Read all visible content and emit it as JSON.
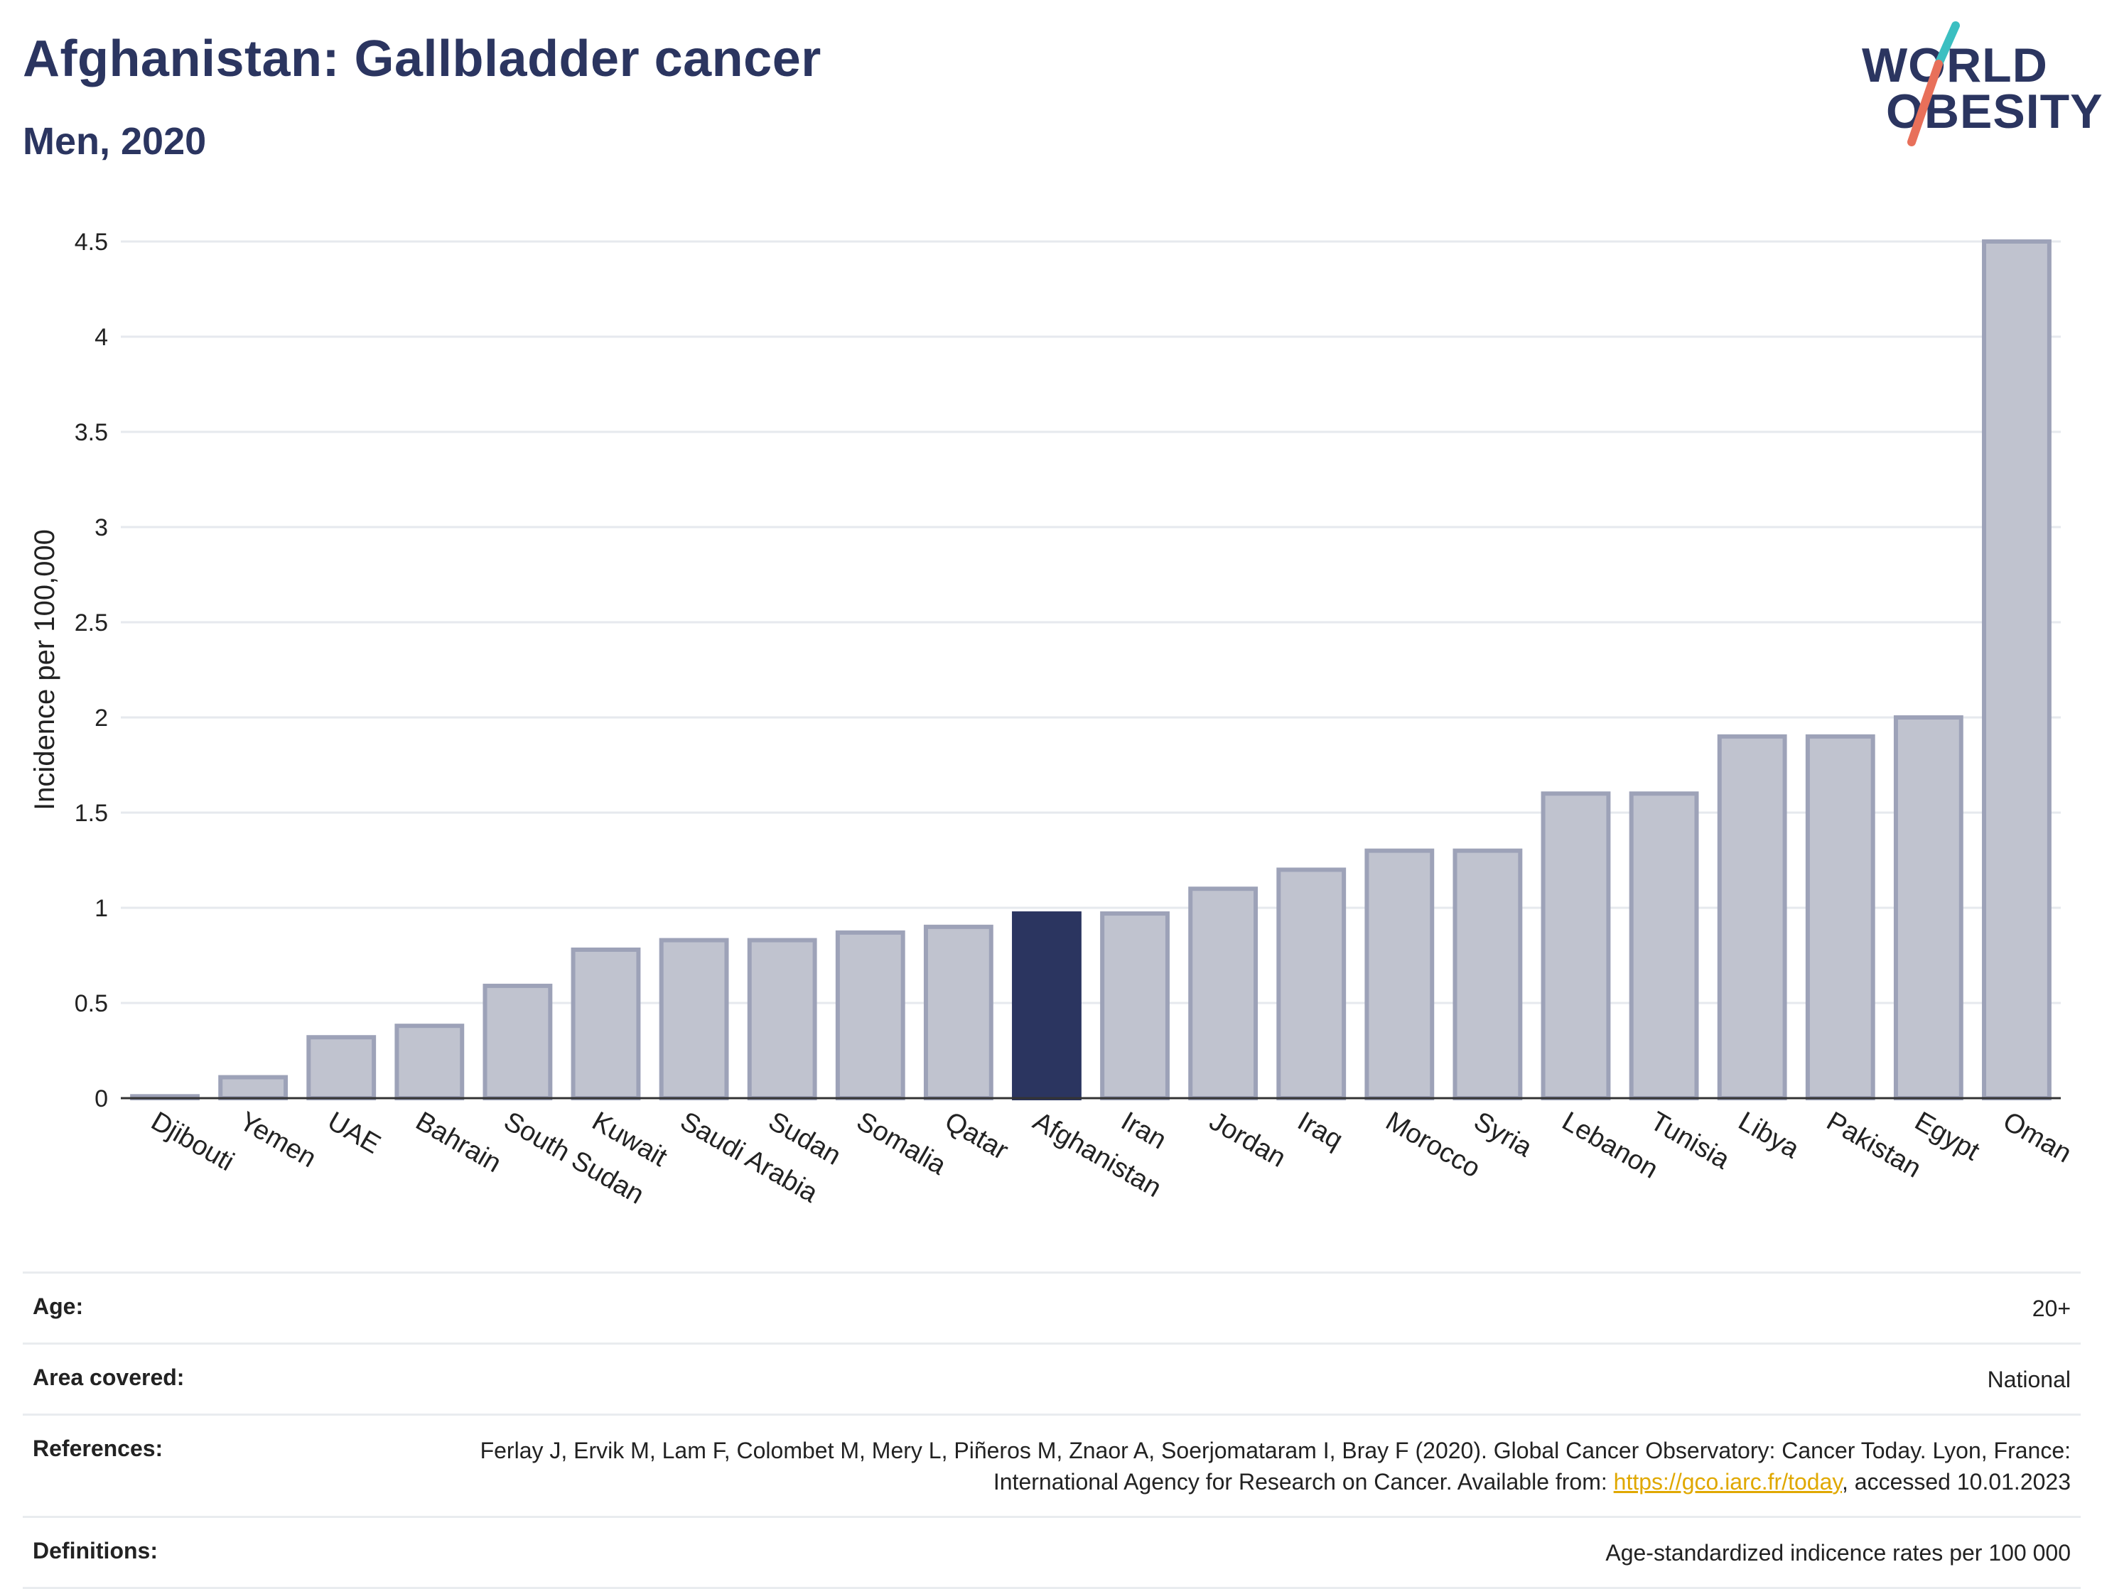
{
  "title": "Afghanistan: Gallbladder cancer",
  "subtitle": "Men, 2020",
  "logo": {
    "line1": "WORLD",
    "line2": "OBESITY",
    "accent_colors": [
      "#3bbfc1",
      "#e8705a"
    ]
  },
  "colors": {
    "highlight": "#2b3560",
    "bar": "#c0c3cf",
    "bar_border": "#9da2b8",
    "grid": "#e6e9ee",
    "axis": "#333333"
  },
  "chart_data": {
    "type": "bar",
    "ylabel": "Incidence per 100,000",
    "ylim": [
      0,
      4.5
    ],
    "yticks": [
      0,
      0.5,
      1,
      1.5,
      2,
      2.5,
      3,
      3.5,
      4,
      4.5
    ],
    "ytick_labels": [
      "0",
      "0.5",
      "1",
      "1.5",
      "2",
      "2.5",
      "3",
      "3.5",
      "4",
      "4.5"
    ],
    "grid": true,
    "highlight": "Afghanistan",
    "categories": [
      "Djibouti",
      "Yemen",
      "UAE",
      "Bahrain",
      "South Sudan",
      "Kuwait",
      "Saudi Arabia",
      "Sudan",
      "Somalia",
      "Qatar",
      "Afghanistan",
      "Iran",
      "Jordan",
      "Iraq",
      "Morocco",
      "Syria",
      "Lebanon",
      "Tunisia",
      "Libya",
      "Pakistan",
      "Egypt",
      "Oman"
    ],
    "values": [
      0.01,
      0.11,
      0.32,
      0.38,
      0.59,
      0.78,
      0.83,
      0.83,
      0.87,
      0.9,
      0.97,
      0.97,
      1.1,
      1.2,
      1.3,
      1.3,
      1.6,
      1.6,
      1.9,
      1.9,
      2.0,
      4.5
    ]
  },
  "meta": {
    "age": {
      "label": "Age:",
      "value": "20+"
    },
    "area": {
      "label": "Area covered:",
      "value": "National"
    },
    "references": {
      "label": "References:",
      "text_before": "Ferlay J, Ervik M, Lam F, Colombet M, Mery L, Piñeros M, Znaor A, Soerjomataram I, Bray F (2020). Global Cancer Observatory: Cancer Today. Lyon, France: International Agency for Research on Cancer. Available from: ",
      "link": "https://gco.iarc.fr/today",
      "text_after": ", accessed 10.01.2023"
    },
    "definitions": {
      "label": "Definitions:",
      "value": "Age-standardized indicence rates per 100 000"
    }
  }
}
